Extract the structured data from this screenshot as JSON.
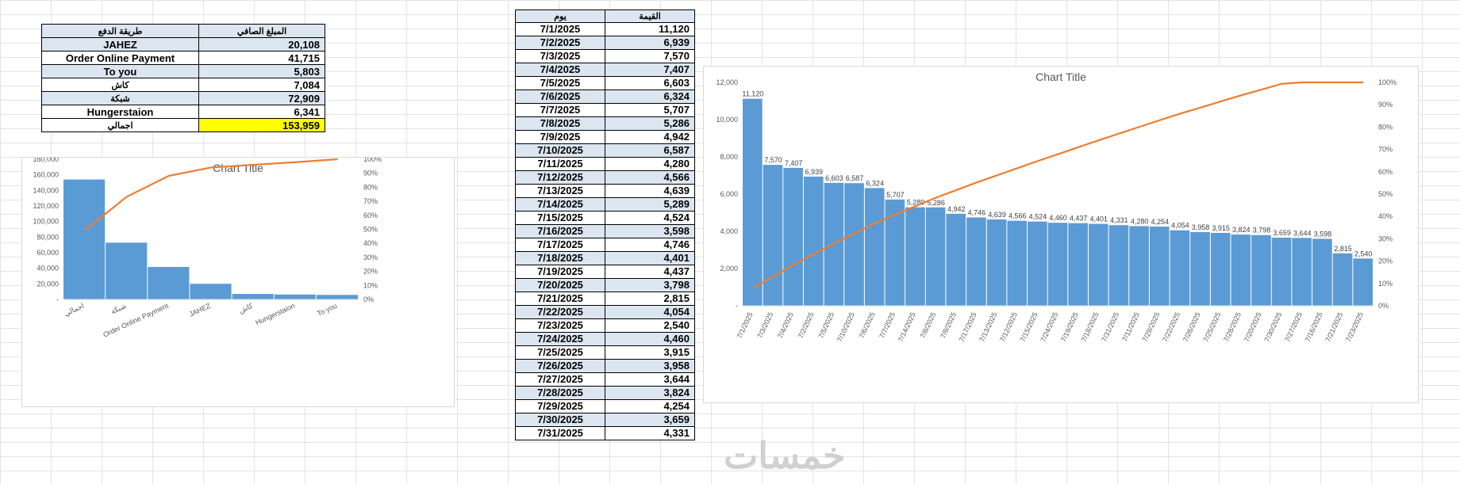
{
  "payment_table": {
    "headers": [
      "طريقة الدفع",
      "المبلغ الصافي"
    ],
    "rows": [
      {
        "method": "JAHEZ",
        "amount": "20,108"
      },
      {
        "method": "Order Online Payment",
        "amount": "41,715"
      },
      {
        "method": "To you",
        "amount": "5,803"
      },
      {
        "method": "كاش",
        "amount": "7,084"
      },
      {
        "method": "شبكة",
        "amount": "72,909"
      },
      {
        "method": "Hungerstaion",
        "amount": "6,341"
      }
    ],
    "total": {
      "label": "اجمالي",
      "amount": "153,959"
    }
  },
  "daily_table": {
    "headers": [
      "يوم",
      "القيمة"
    ],
    "rows": [
      {
        "date": "7/1/2025",
        "value": "11,120"
      },
      {
        "date": "7/2/2025",
        "value": "6,939"
      },
      {
        "date": "7/3/2025",
        "value": "7,570"
      },
      {
        "date": "7/4/2025",
        "value": "7,407"
      },
      {
        "date": "7/5/2025",
        "value": "6,603"
      },
      {
        "date": "7/6/2025",
        "value": "6,324"
      },
      {
        "date": "7/7/2025",
        "value": "5,707"
      },
      {
        "date": "7/8/2025",
        "value": "5,286"
      },
      {
        "date": "7/9/2025",
        "value": "4,942"
      },
      {
        "date": "7/10/2025",
        "value": "6,587"
      },
      {
        "date": "7/11/2025",
        "value": "4,280"
      },
      {
        "date": "7/12/2025",
        "value": "4,566"
      },
      {
        "date": "7/13/2025",
        "value": "4,639"
      },
      {
        "date": "7/14/2025",
        "value": "5,289"
      },
      {
        "date": "7/15/2025",
        "value": "4,524"
      },
      {
        "date": "7/16/2025",
        "value": "3,598"
      },
      {
        "date": "7/17/2025",
        "value": "4,746"
      },
      {
        "date": "7/18/2025",
        "value": "4,401"
      },
      {
        "date": "7/19/2025",
        "value": "4,437"
      },
      {
        "date": "7/20/2025",
        "value": "3,798"
      },
      {
        "date": "7/21/2025",
        "value": "2,815"
      },
      {
        "date": "7/22/2025",
        "value": "4,054"
      },
      {
        "date": "7/23/2025",
        "value": "2,540"
      },
      {
        "date": "7/24/2025",
        "value": "4,460"
      },
      {
        "date": "7/25/2025",
        "value": "3,915"
      },
      {
        "date": "7/26/2025",
        "value": "3,958"
      },
      {
        "date": "7/27/2025",
        "value": "3,644"
      },
      {
        "date": "7/28/2025",
        "value": "3,824"
      },
      {
        "date": "7/29/2025",
        "value": "4,254"
      },
      {
        "date": "7/30/2025",
        "value": "3,659"
      },
      {
        "date": "7/31/2025",
        "value": "4,331"
      }
    ]
  },
  "colors": {
    "bar": "#5b9bd5",
    "line": "#ed7d31",
    "header_band": "#dce6f1",
    "total_highlight": "#ffff00"
  },
  "watermark": "خمسات",
  "chart_data": [
    {
      "type": "bar",
      "title": "Chart Title",
      "categories": [
        "اجمالي",
        "شبكة",
        "Order Online Payment",
        "JAHEZ",
        "كاش",
        "Hungerstaion",
        "To you"
      ],
      "series": [
        {
          "values": [
            153959,
            72909,
            41715,
            20108,
            7084,
            6341,
            5803
          ]
        },
        {
          "values": [
            49.2,
            73.2,
            88.2,
            94.1,
            96.0,
            97.9,
            100
          ]
        }
      ],
      "y_ticks": [
        "-",
        "20,000",
        "40,000",
        "60,000",
        "80,000",
        "100,000",
        "120,000",
        "140,000",
        "160,000",
        "180,000"
      ],
      "y2_ticks": [
        "0%",
        "10%",
        "20%",
        "30%",
        "40%",
        "50%",
        "60%",
        "70%",
        "80%",
        "90%",
        "100%"
      ],
      "ylim": [
        0,
        180000
      ],
      "y2lim": [
        0,
        100
      ],
      "grid": false
    },
    {
      "type": "bar",
      "title": "Chart Title",
      "categories": [
        "7/1/2025",
        "7/3/2025",
        "7/4/2025",
        "7/2/2025",
        "7/5/2025",
        "7/10/2025",
        "7/6/2025",
        "7/7/2025",
        "7/14/2025",
        "7/8/2025",
        "7/9/2025",
        "7/17/2025",
        "7/13/2025",
        "7/12/2025",
        "7/15/2025",
        "7/24/2025",
        "7/19/2025",
        "7/18/2025",
        "7/31/2025",
        "7/11/2025",
        "7/29/2025",
        "7/22/2025",
        "7/26/2025",
        "7/25/2025",
        "7/28/2025",
        "7/20/2025",
        "7/30/2025",
        "7/27/2025",
        "7/16/2025",
        "7/21/2025",
        "7/23/2025"
      ],
      "series": [
        {
          "values": [
            11120,
            7570,
            7407,
            6939,
            6603,
            6587,
            6324,
            5707,
            5289,
            5286,
            4942,
            4746,
            4639,
            4566,
            4524,
            4460,
            4437,
            4401,
            4331,
            4280,
            4254,
            4054,
            3958,
            3915,
            3824,
            3798,
            3659,
            3644,
            3598,
            2815,
            2540
          ],
          "labels": [
            "11,120",
            "7,570",
            "7,407",
            "6,939",
            "6,603",
            "6,587",
            "6,324",
            "5,707",
            "5,289",
            "5,286",
            "4,942",
            "4,746",
            "4,639",
            "4,566",
            "4,524",
            "4,460",
            "4,437",
            "4,401",
            "4,331",
            "4,280",
            "4,254",
            "4,054",
            "3,958",
            "3,915",
            "3,824",
            "3,798",
            "3,659",
            "3,644",
            "3,598",
            "2,815",
            "2,540"
          ]
        },
        {
          "values": [
            7.8,
            13.1,
            18.4,
            23.2,
            27.9,
            32.5,
            36.9,
            40.9,
            44.6,
            48.4,
            51.8,
            55.2,
            58.4,
            61.6,
            64.8,
            67.9,
            71.0,
            74.1,
            77.1,
            80.1,
            83.1,
            86.0,
            88.7,
            91.5,
            94.2,
            96.8,
            99.4,
            101.9,
            104.4,
            106.4,
            108.2
          ]
        }
      ],
      "y_ticks": [
        "-",
        "2,000",
        "4,000",
        "6,000",
        "8,000",
        "10,000",
        "12,000"
      ],
      "y2_ticks": [
        "0%",
        "10%",
        "20%",
        "30%",
        "40%",
        "50%",
        "60%",
        "70%",
        "80%",
        "90%",
        "100%"
      ],
      "ylim": [
        0,
        12000
      ],
      "y2lim": [
        0,
        100
      ],
      "grid": false
    }
  ]
}
